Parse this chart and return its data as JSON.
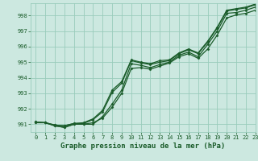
{
  "background_color": "#cce8e0",
  "grid_color": "#99ccbb",
  "line_color": "#1a5c2a",
  "marker_color": "#1a5c2a",
  "xlabel": "Graphe pression niveau de la mer (hPa)",
  "xlabel_fontsize": 6.5,
  "xlim": [
    -0.5,
    23
  ],
  "ylim": [
    990.5,
    998.8
  ],
  "yticks": [
    991,
    992,
    993,
    994,
    995,
    996,
    997,
    998
  ],
  "xticks": [
    0,
    1,
    2,
    3,
    4,
    5,
    6,
    7,
    8,
    9,
    10,
    11,
    12,
    13,
    14,
    15,
    16,
    17,
    18,
    19,
    20,
    21,
    22,
    23
  ],
  "series": [
    [
      991.1,
      991.1,
      990.9,
      990.8,
      991.0,
      991.0,
      991.0,
      991.5,
      992.3,
      993.2,
      994.9,
      994.8,
      994.65,
      994.85,
      995.0,
      995.45,
      995.65,
      995.35,
      996.15,
      997.0,
      998.15,
      998.2,
      998.35,
      998.55
    ],
    [
      991.1,
      991.1,
      990.9,
      990.8,
      991.0,
      991.0,
      991.1,
      991.4,
      992.1,
      993.0,
      994.6,
      994.65,
      994.55,
      994.75,
      994.95,
      995.35,
      995.55,
      995.25,
      995.85,
      996.75,
      997.85,
      998.05,
      998.15,
      998.35
    ],
    [
      991.15,
      991.1,
      990.95,
      990.9,
      991.05,
      991.05,
      991.3,
      991.8,
      993.05,
      993.65,
      995.1,
      994.95,
      994.85,
      995.0,
      995.1,
      995.55,
      995.8,
      995.55,
      996.3,
      997.2,
      998.3,
      998.4,
      998.5,
      998.7
    ],
    [
      991.15,
      991.1,
      990.95,
      990.9,
      991.05,
      991.1,
      991.35,
      991.9,
      993.2,
      993.75,
      995.15,
      995.0,
      994.9,
      995.1,
      995.15,
      995.6,
      995.85,
      995.6,
      996.35,
      997.25,
      998.35,
      998.45,
      998.55,
      998.75
    ]
  ]
}
